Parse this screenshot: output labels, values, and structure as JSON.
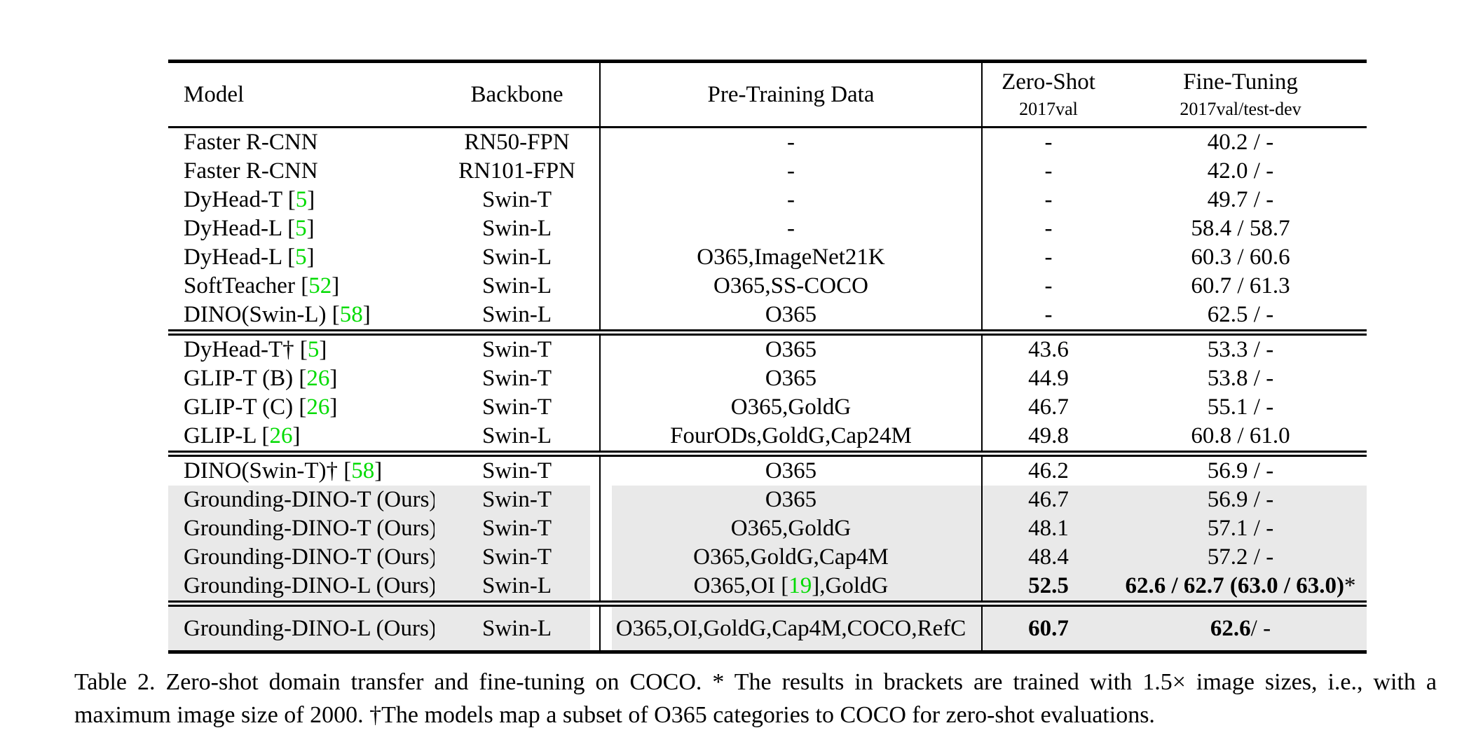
{
  "colors": {
    "citation": "#00DB00",
    "row_shade": "#E9E9E9",
    "rule": "#000000"
  },
  "table": {
    "header": {
      "model": "Model",
      "backbone": "Backbone",
      "pretraining": "Pre-Training Data",
      "zero_shot": {
        "line1": "Zero-Shot",
        "line2": "2017val"
      },
      "fine_tuning": {
        "line1": "Fine-Tuning",
        "line2": "2017val/test-dev"
      }
    },
    "sections": [
      {
        "rows": [
          {
            "model": "Faster R-CNN",
            "backbone": "RN50-FPN",
            "pretrain": "-",
            "zs": "-",
            "zs_bold": false,
            "ft": [
              {
                "t": "40.2 / -",
                "b": false
              }
            ],
            "shaded": false
          },
          {
            "model": "Faster R-CNN",
            "backbone": "RN101-FPN",
            "pretrain": "-",
            "zs": "-",
            "zs_bold": false,
            "ft": [
              {
                "t": "42.0 / -",
                "b": false
              }
            ],
            "shaded": false
          },
          {
            "model": "DyHead-T [[5]]",
            "backbone": "Swin-T",
            "pretrain": "-",
            "zs": "-",
            "zs_bold": false,
            "ft": [
              {
                "t": "49.7 / -",
                "b": false
              }
            ],
            "shaded": false
          },
          {
            "model": "DyHead-L [[5]]",
            "backbone": "Swin-L",
            "pretrain": "-",
            "zs": "-",
            "zs_bold": false,
            "ft": [
              {
                "t": "58.4 / 58.7",
                "b": false
              }
            ],
            "shaded": false
          },
          {
            "model": "DyHead-L [[5]]",
            "backbone": "Swin-L",
            "pretrain": "O365,ImageNet21K",
            "zs": "-",
            "zs_bold": false,
            "ft": [
              {
                "t": "60.3 / 60.6",
                "b": false
              }
            ],
            "shaded": false
          },
          {
            "model": "SoftTeacher [[52]]",
            "backbone": "Swin-L",
            "pretrain": "O365,SS-COCO",
            "zs": "-",
            "zs_bold": false,
            "ft": [
              {
                "t": "60.7 / 61.3",
                "b": false
              }
            ],
            "shaded": false
          },
          {
            "model": "DINO(Swin-L) [[58]]",
            "backbone": "Swin-L",
            "pretrain": "O365",
            "zs": "-",
            "zs_bold": false,
            "ft": [
              {
                "t": "62.5 / -",
                "b": false
              }
            ],
            "shaded": false
          }
        ]
      },
      {
        "rows": [
          {
            "model": "DyHead-T† [[5]]",
            "backbone": "Swin-T",
            "pretrain": "O365",
            "zs": "43.6",
            "zs_bold": false,
            "ft": [
              {
                "t": "53.3 / -",
                "b": false
              }
            ],
            "shaded": false
          },
          {
            "model": "GLIP-T (B) [[26]]",
            "backbone": "Swin-T",
            "pretrain": "O365",
            "zs": "44.9",
            "zs_bold": false,
            "ft": [
              {
                "t": "53.8 / -",
                "b": false
              }
            ],
            "shaded": false
          },
          {
            "model": "GLIP-T (C) [[26]]",
            "backbone": "Swin-T",
            "pretrain": "O365,GoldG",
            "zs": "46.7",
            "zs_bold": false,
            "ft": [
              {
                "t": "55.1 / -",
                "b": false
              }
            ],
            "shaded": false
          },
          {
            "model": "GLIP-L [[26]]",
            "backbone": "Swin-L",
            "pretrain": "FourODs,GoldG,Cap24M",
            "zs": "49.8",
            "zs_bold": false,
            "ft": [
              {
                "t": "60.8 / 61.0",
                "b": false
              }
            ],
            "shaded": false
          }
        ]
      },
      {
        "rows": [
          {
            "model": "DINO(Swin-T)† [[58]]",
            "backbone": "Swin-T",
            "pretrain": "O365",
            "zs": "46.2",
            "zs_bold": false,
            "ft": [
              {
                "t": "56.9 / -",
                "b": false
              }
            ],
            "shaded": false
          },
          {
            "model": "Grounding-DINO-T (Ours)",
            "backbone": "Swin-T",
            "pretrain": "O365",
            "zs": "46.7",
            "zs_bold": false,
            "ft": [
              {
                "t": "56.9 / -",
                "b": false
              }
            ],
            "shaded": true
          },
          {
            "model": "Grounding-DINO-T (Ours)",
            "backbone": "Swin-T",
            "pretrain": "O365,GoldG",
            "zs": "48.1",
            "zs_bold": false,
            "ft": [
              {
                "t": "57.1 / -",
                "b": false
              }
            ],
            "shaded": true
          },
          {
            "model": "Grounding-DINO-T (Ours)",
            "backbone": "Swin-T",
            "pretrain": "O365,GoldG,Cap4M",
            "zs": "48.4",
            "zs_bold": false,
            "ft": [
              {
                "t": "57.2 / -",
                "b": false
              }
            ],
            "shaded": true
          },
          {
            "model": "Grounding-DINO-L (Ours)",
            "backbone": "Swin-L",
            "pretrain": "O365,OI [[19]],GoldG",
            "zs": "52.5",
            "zs_bold": true,
            "ft": [
              {
                "t": "62.6 / 62.7 (63.0 / 63.0)",
                "b": true
              },
              {
                "t": "*",
                "b": false
              }
            ],
            "shaded": true
          }
        ]
      },
      {
        "rows": [
          {
            "model": "Grounding-DINO-L (Ours)",
            "backbone": "Swin-L",
            "pretrain": "O365,OI,GoldG,Cap4M,COCO,RefC",
            "zs": "60.7",
            "zs_bold": true,
            "ft": [
              {
                "t": "62.6",
                "b": true
              },
              {
                "t": " / -",
                "b": false
              }
            ],
            "shaded": true
          }
        ]
      }
    ]
  },
  "caption": {
    "text": "Table 2.  Zero-shot domain transfer and fine-tuning on COCO. * The results in brackets are trained with 1.5× image sizes, i.e., with a maximum image size of 2000. †The models map a subset of O365 categories to COCO for zero-shot evaluations."
  }
}
